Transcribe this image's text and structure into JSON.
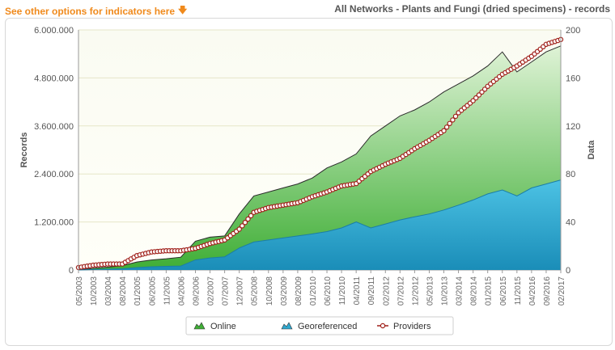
{
  "header": {
    "options_link": "See other options for indicators here",
    "title": "All Networks - Plants and Fungi (dried specimens) - records"
  },
  "chart_data": {
    "type": "area",
    "left_axis": {
      "label": "Records",
      "ticks": [
        "0",
        "1.200.000",
        "2.400.000",
        "3.600.000",
        "4.800.000",
        "6.000.000"
      ],
      "min": 0,
      "max": 6000000
    },
    "right_axis": {
      "label": "Data",
      "ticks": [
        "0",
        "40",
        "80",
        "120",
        "160",
        "200"
      ],
      "min": 0,
      "max": 200
    },
    "categories": [
      "05/2003",
      "10/2003",
      "03/2004",
      "08/2004",
      "01/2005",
      "06/2005",
      "11/2005",
      "04/2006",
      "09/2006",
      "02/2007",
      "07/2007",
      "12/2007",
      "05/2008",
      "10/2008",
      "03/2009",
      "08/2009",
      "01/2010",
      "06/2010",
      "11/2010",
      "04/2011",
      "09/2011",
      "02/2012",
      "07/2012",
      "12/2012",
      "05/2013",
      "10/2013",
      "03/2014",
      "08/2014",
      "01/2015",
      "06/2015",
      "11/2015",
      "04/2016",
      "09/2016",
      "02/2017"
    ],
    "series": [
      {
        "name": "Online",
        "axis": "left",
        "color": "#5cbf4a",
        "values": [
          0,
          40000,
          70000,
          110000,
          200000,
          250000,
          280000,
          320000,
          720000,
          820000,
          850000,
          1400000,
          1850000,
          1950000,
          2050000,
          2150000,
          2300000,
          2550000,
          2700000,
          2900000,
          3350000,
          3600000,
          3850000,
          4000000,
          4200000,
          4450000,
          4650000,
          4850000,
          5100000,
          5450000,
          4950000,
          5200000,
          5450000,
          5600000
        ]
      },
      {
        "name": "Georeferenced",
        "axis": "left",
        "color": "#2fa8cf",
        "values": [
          0,
          10000,
          20000,
          30000,
          60000,
          80000,
          90000,
          100000,
          250000,
          300000,
          330000,
          550000,
          700000,
          750000,
          800000,
          850000,
          900000,
          960000,
          1050000,
          1200000,
          1050000,
          1150000,
          1250000,
          1330000,
          1400000,
          1500000,
          1620000,
          1750000,
          1900000,
          2000000,
          1850000,
          2050000,
          2150000,
          2250000
        ]
      },
      {
        "name": "Providers",
        "axis": "right",
        "color": "#a0201a",
        "values": [
          2,
          4,
          5,
          5,
          12,
          15,
          16,
          16,
          18,
          22,
          25,
          34,
          48,
          52,
          54,
          56,
          61,
          65,
          70,
          72,
          82,
          88,
          93,
          101,
          108,
          116,
          131,
          141,
          153,
          163,
          170,
          178,
          188,
          192
        ]
      }
    ],
    "legend": {
      "position": "bottom-center",
      "items": [
        "Online",
        "Georeferenced",
        "Providers"
      ]
    },
    "grid": true
  }
}
